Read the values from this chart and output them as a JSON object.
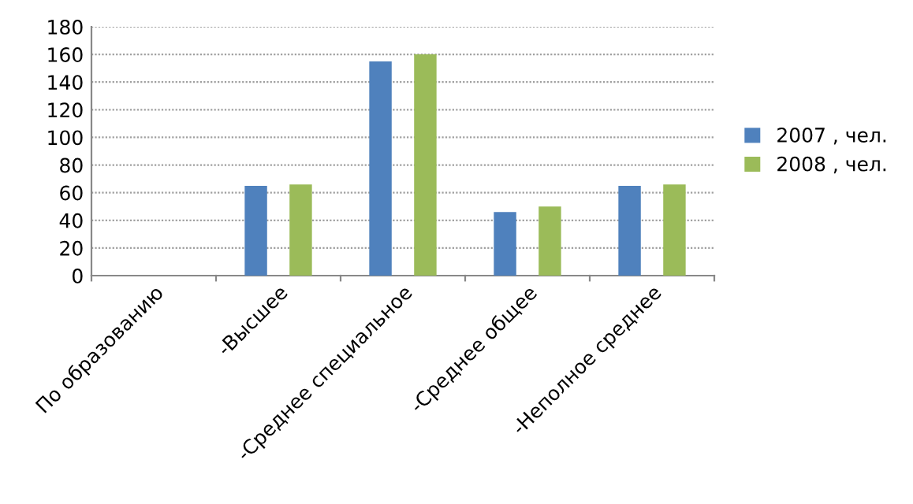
{
  "chart_data": {
    "type": "bar",
    "categories": [
      "По образованию",
      "-Высшее",
      "-Среднее специальное",
      "-Среднее общее",
      "-Неполное среднее"
    ],
    "series": [
      {
        "name": "2007 , чел.",
        "color": "#4f81bd",
        "values": [
          null,
          65,
          155,
          46,
          65
        ]
      },
      {
        "name": "2008 , чел.",
        "color": "#9bbb59",
        "values": [
          null,
          66,
          160,
          50,
          66
        ]
      }
    ],
    "ylim": [
      0,
      180
    ],
    "yticks": [
      0,
      20,
      40,
      60,
      80,
      100,
      120,
      140,
      160,
      180
    ],
    "grid": "y",
    "legend": "right"
  }
}
